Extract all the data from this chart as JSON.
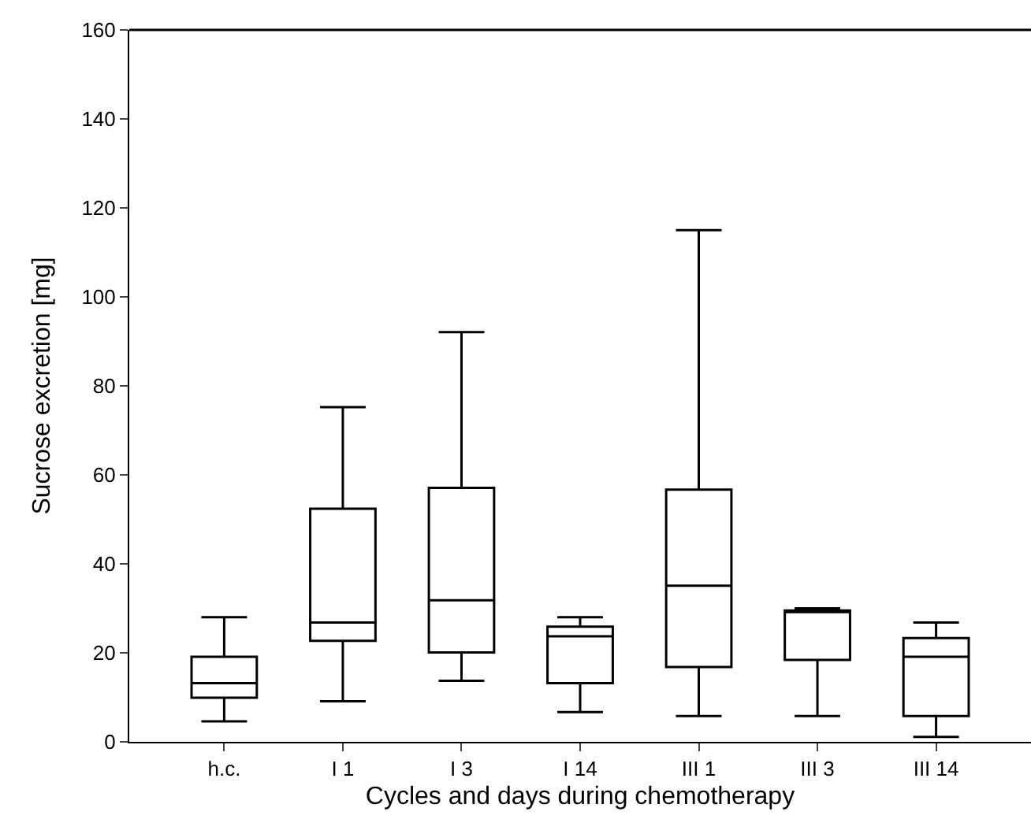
{
  "chart_data": {
    "type": "box",
    "xlabel": "Cycles and days during chemotherapy",
    "ylabel": "Sucrose excretion [mg]",
    "categories": [
      "h.c.",
      "I 1",
      "I 3",
      "I 14",
      "III 1",
      "III 3",
      "III 14"
    ],
    "boxes": [
      {
        "low": 4.6,
        "q1": 9.9,
        "median": 13.2,
        "q3": 19.1,
        "high": 28.0
      },
      {
        "low": 9.1,
        "q1": 22.7,
        "median": 26.8,
        "q3": 52.4,
        "high": 75.2
      },
      {
        "low": 13.7,
        "q1": 20.1,
        "median": 31.8,
        "q3": 57.1,
        "high": 92.1
      },
      {
        "low": 6.7,
        "q1": 13.2,
        "median": 23.7,
        "q3": 25.9,
        "high": 28.0
      },
      {
        "low": 5.8,
        "q1": 16.8,
        "median": 35.1,
        "q3": 56.7,
        "high": 115
      },
      {
        "low": 5.8,
        "q1": 18.4,
        "median": 29.5,
        "q3": 29.5,
        "high": 30.0
      },
      {
        "low": 1.1,
        "q1": 5.8,
        "median": 19.1,
        "q3": 23.3,
        "high": 26.8
      }
    ],
    "color": "#000000",
    "ylim": [
      0,
      160
    ],
    "yticks": [
      0,
      20,
      40,
      60,
      80,
      100,
      120,
      140,
      160
    ]
  }
}
